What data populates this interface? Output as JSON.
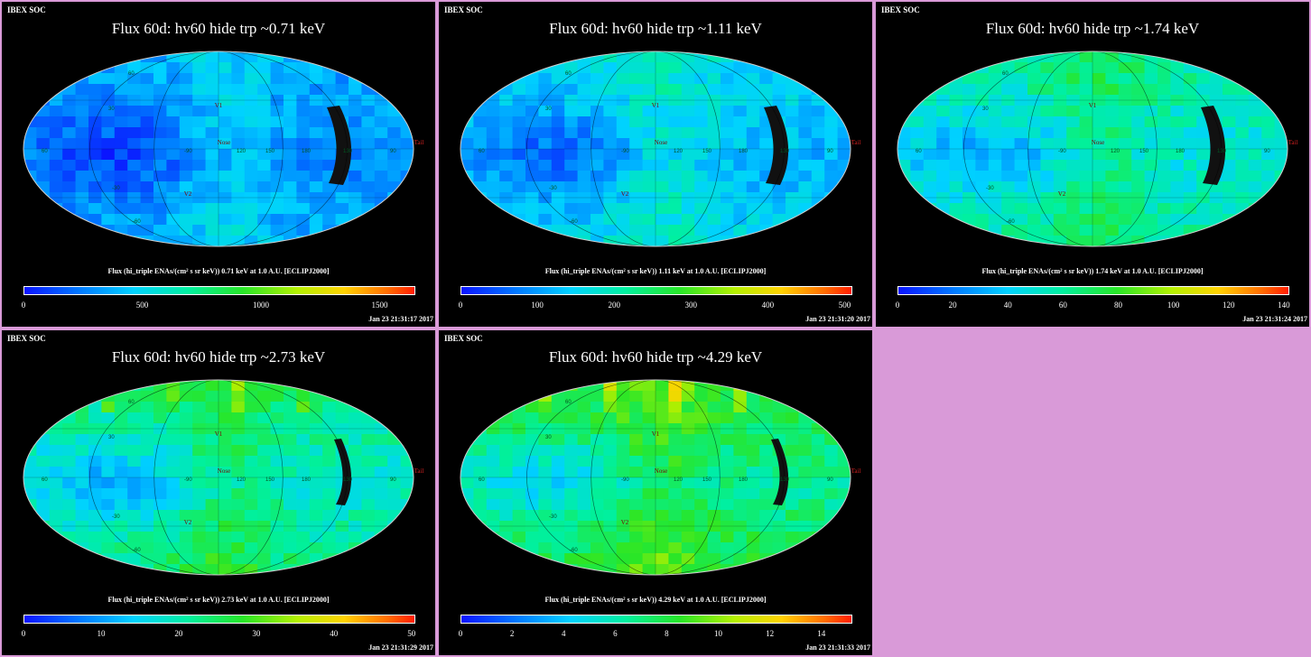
{
  "header_label": "IBEX SOC",
  "colors": {
    "background": "#d99ad8",
    "panel": "#000000",
    "grid": "#00c000",
    "marker": "#c02020"
  },
  "map_labels": {
    "v1": "V1",
    "v2": "V2",
    "nose": "Nose",
    "tail": "Tail",
    "lon": [
      "60",
      "-90",
      "120",
      "150",
      "180",
      "130",
      "90"
    ],
    "lat": [
      "60",
      "30",
      "-30",
      "-60"
    ]
  },
  "panels": [
    {
      "title": "Flux   60d: hv60 hide trp ~0.71 keV",
      "colorbar_title": "Flux (hi_triple ENAs/(cm² s sr keV))  0.71 keV at 1.0 A.U. [ECLIPJ2000]",
      "ticks": [
        "0",
        "500",
        "1000",
        "1500"
      ],
      "max": 1650,
      "timestamp": "Jan 23 21:31:17 2017",
      "level": 0.18
    },
    {
      "title": "Flux   60d: hv60 hide trp ~1.11 keV",
      "colorbar_title": "Flux (hi_triple ENAs/(cm² s sr keV))  1.11 keV at 1.0 A.U. [ECLIPJ2000]",
      "ticks": [
        "0",
        "100",
        "200",
        "300",
        "400",
        "500"
      ],
      "max": 510,
      "timestamp": "Jan 23 21:31:20 2017",
      "level": 0.24
    },
    {
      "title": "Flux   60d: hv60 hide trp ~1.74 keV",
      "colorbar_title": "Flux (hi_triple ENAs/(cm² s sr keV))  1.74 keV at 1.0 A.U. [ECLIPJ2000]",
      "ticks": [
        "0",
        "20",
        "40",
        "60",
        "80",
        "100",
        "120",
        "140"
      ],
      "max": 142,
      "timestamp": "Jan 23 21:31:24 2017",
      "level": 0.34
    },
    {
      "title": "Flux   60d: hv60 hide trp ~2.73 keV",
      "colorbar_title": "Flux (hi_triple ENAs/(cm² s sr keV))  2.73 keV at 1.0 A.U. [ECLIPJ2000]",
      "ticks": [
        "0",
        "10",
        "20",
        "30",
        "40",
        "50"
      ],
      "max": 50.5,
      "timestamp": "Jan 23 21:31:29 2017",
      "level": 0.36
    },
    {
      "title": "Flux   60d: hv60 hide trp ~4.29 keV",
      "colorbar_title": "Flux (hi_triple ENAs/(cm² s sr keV))  4.29 keV at 1.0 A.U. [ECLIPJ2000]",
      "ticks": [
        "0",
        "2",
        "4",
        "6",
        "8",
        "10",
        "12",
        "14"
      ],
      "max": 15.2,
      "timestamp": "Jan 23 21:31:33 2017",
      "level": 0.42
    }
  ]
}
